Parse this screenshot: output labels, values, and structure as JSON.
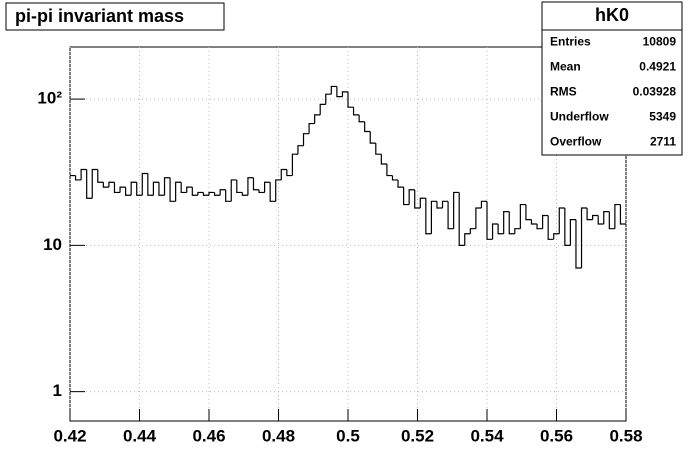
{
  "chart_data": {
    "type": "histogram",
    "title": "pi-pi invariant mass",
    "bins": [
      0.42,
      0.4216,
      0.4232,
      0.4248,
      0.4264,
      0.428,
      0.4296,
      0.4312,
      0.4328,
      0.4344,
      0.436,
      0.4376,
      0.4392,
      0.4408,
      0.4424,
      0.444,
      0.4456,
      0.4472,
      0.4488,
      0.4504,
      0.452,
      0.4536,
      0.4552,
      0.4568,
      0.4584,
      0.46,
      0.4616,
      0.4632,
      0.4648,
      0.4664,
      0.468,
      0.4696,
      0.4712,
      0.4728,
      0.4744,
      0.476,
      0.4776,
      0.4792,
      0.4808,
      0.4824,
      0.484,
      0.4856,
      0.4872,
      0.4888,
      0.4904,
      0.492,
      0.4936,
      0.4952,
      0.4968,
      0.4984,
      0.5,
      0.5016,
      0.5032,
      0.5048,
      0.5064,
      0.508,
      0.5096,
      0.5112,
      0.5128,
      0.5144,
      0.516,
      0.5176,
      0.5192,
      0.5208,
      0.5224,
      0.524,
      0.5256,
      0.5272,
      0.5288,
      0.5304,
      0.532,
      0.5336,
      0.5352,
      0.5368,
      0.5384,
      0.54,
      0.5416,
      0.5432,
      0.5448,
      0.5464,
      0.548,
      0.5496,
      0.5512,
      0.5528,
      0.5544,
      0.556,
      0.5576,
      0.5592,
      0.5608,
      0.5624,
      0.564,
      0.5656,
      0.5672,
      0.5688,
      0.5704,
      0.572,
      0.5736,
      0.5752,
      0.5768,
      0.5784,
      0.58
    ],
    "values": [
      30,
      28,
      33,
      21,
      33,
      27,
      25,
      27,
      23,
      25,
      22,
      27,
      22,
      31,
      22,
      27,
      22,
      29,
      20,
      27,
      23,
      25,
      22,
      23,
      22,
      23,
      22,
      24,
      20,
      28,
      23,
      22,
      29,
      24,
      23,
      27,
      20,
      28,
      33,
      30,
      42,
      48,
      58,
      68,
      78,
      92,
      108,
      122,
      104,
      112,
      88,
      78,
      70,
      60,
      50,
      42,
      36,
      30,
      28,
      25,
      19,
      24,
      18,
      21,
      12,
      20,
      18,
      20,
      13,
      23,
      10,
      12,
      13,
      18,
      20,
      11,
      14,
      12,
      17,
      12,
      13,
      19,
      15,
      14,
      13,
      16,
      11,
      12,
      18,
      10,
      15,
      7,
      18,
      15,
      16,
      14,
      17,
      13,
      19,
      14
    ],
    "color": "#000000",
    "xlim": [
      0.42,
      0.58
    ],
    "xticks": [
      0.42,
      0.44,
      0.46,
      0.48,
      0.5,
      0.52,
      0.54,
      0.56,
      0.58
    ],
    "ylim": [
      0.63,
      227
    ],
    "yticks": [
      1,
      10,
      {
        "value": 100,
        "label": "10²"
      }
    ],
    "log_y": true,
    "grid": true,
    "stats": {
      "title": "hK0",
      "rows": [
        {
          "label": "Entries",
          "value": 10809
        },
        {
          "label": "Mean",
          "value": 0.4921
        },
        {
          "label": "RMS",
          "value": 0.03928
        },
        {
          "label": "Underflow",
          "value": 5349
        },
        {
          "label": "Overflow",
          "value": 2711
        }
      ]
    }
  }
}
